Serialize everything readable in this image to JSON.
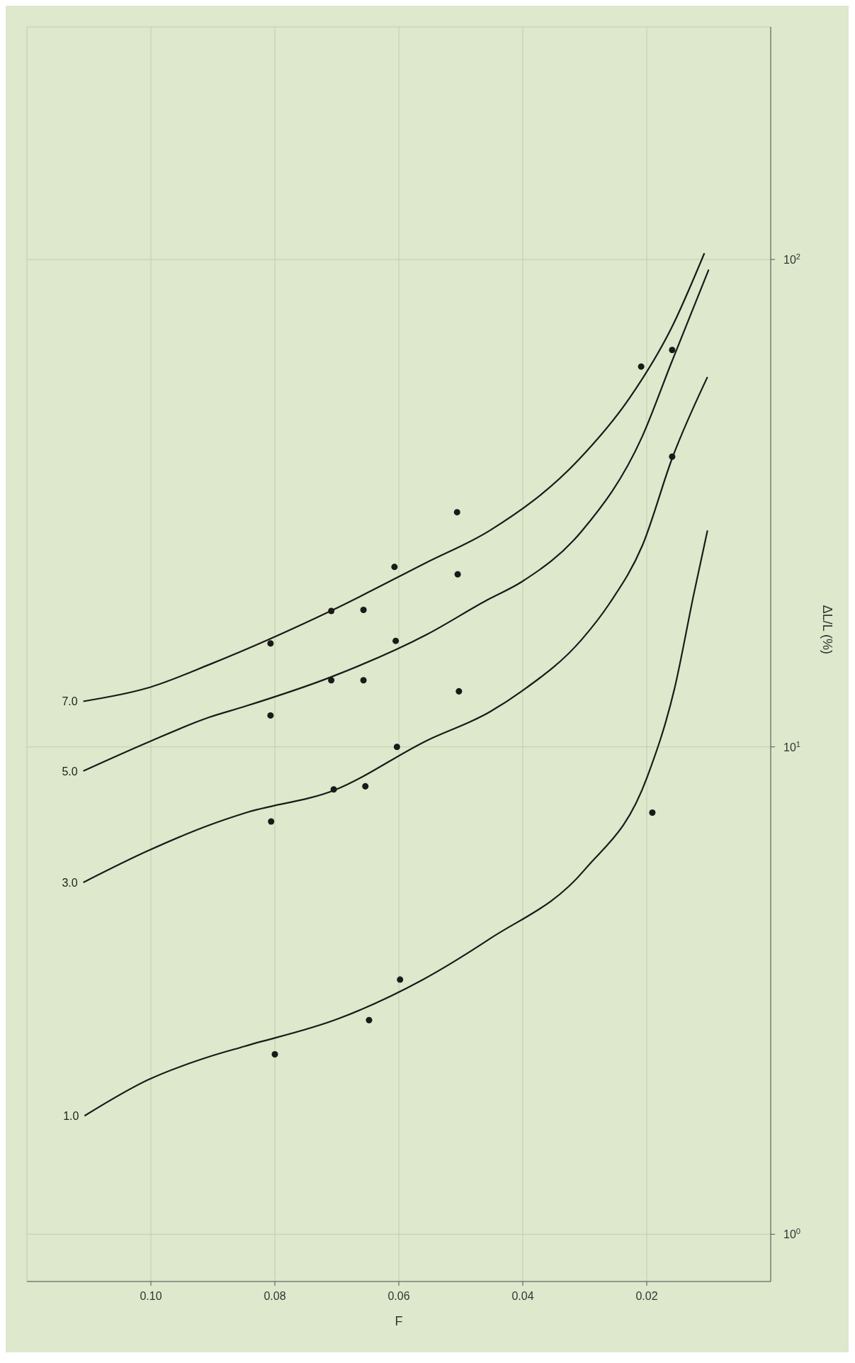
{
  "chart_data": {
    "type": "line",
    "xlabel": "F",
    "ylabel": "ΔL/L (%)",
    "log": "y",
    "grid": true,
    "line_style": "solid",
    "marker": "none",
    "xlim": [
      0.12,
      0
    ],
    "xticks": [
      {
        "value": 0.1,
        "label": "0.10"
      },
      {
        "value": 0.08,
        "label": "0.08"
      },
      {
        "value": 0.06,
        "label": "0.06"
      },
      {
        "value": 0.04,
        "label": "0.04"
      },
      {
        "value": 0.02,
        "label": "0.02"
      }
    ],
    "ylim": [
      0.8,
      300
    ],
    "yticks": [
      {
        "value": 1,
        "label": "10$^{0}$"
      },
      {
        "value": 10,
        "label": "10$^{1}$"
      },
      {
        "value": 100,
        "label": "10$^{2}$"
      }
    ],
    "series": [
      {
        "name": "1.0",
        "color": "#1a1a1a",
        "x": [
          0.1107,
          0.1006,
          0.0903,
          0.0849,
          0.0697,
          0.0563,
          0.0453,
          0.03,
          0.0199,
          0.0155,
          0.0124,
          0.0102
        ],
        "values": [
          1.75,
          2.07,
          2.32,
          2.43,
          2.77,
          3.32,
          4.04,
          5.6,
          8.69,
          13.2,
          20.6,
          27.8
        ]
      },
      {
        "name": "3.0",
        "color": "#1a1a1a",
        "x": [
          0.1109,
          0.1006,
          0.0903,
          0.0849,
          0.0703,
          0.0555,
          0.0453,
          0.0402,
          0.0305,
          0.026,
          0.0207,
          0.0158,
          0.0102
        ],
        "values": [
          5.27,
          6.11,
          6.93,
          7.31,
          8.16,
          10.3,
          11.8,
          13.0,
          16.6,
          19.7,
          25.9,
          39.4,
          57.4
        ]
      },
      {
        "name": "5.0",
        "color": "#1a1a1a",
        "x": [
          0.1109,
          0.1006,
          0.0906,
          0.0849,
          0.071,
          0.0555,
          0.0458,
          0.0402,
          0.0305,
          0.0207,
          0.016,
          0.01
        ],
        "values": [
          8.92,
          10.2,
          11.5,
          12.1,
          13.9,
          17.0,
          20.0,
          21.8,
          27.7,
          43.4,
          61.5,
          95.3
        ]
      },
      {
        "name": "7.0",
        "color": "#1a1a1a",
        "x": [
          0.1109,
          0.1006,
          0.0903,
          0.071,
          0.0555,
          0.0453,
          0.031,
          0.0228,
          0.016,
          0.0107
        ],
        "values": [
          12.4,
          13.2,
          14.8,
          19.0,
          23.9,
          27.8,
          38.8,
          51.9,
          72.4,
          103
        ]
      },
      {
        "type": "scatter",
        "marker": "circle",
        "color": "#1a1a1a",
        "x": [
          0.0506,
          0.0607,
          0.0505,
          0.0657,
          0.0807,
          0.0605,
          0.0657,
          0.0807,
          0.0503,
          0.0603,
          0.0654,
          0.0806,
          0.0191,
          0.0159,
          0.0598,
          0.0648,
          0.08,
          0.0209,
          0.0159,
          0.0709,
          0.0709,
          0.0705
        ],
        "values": [
          30.3,
          23.4,
          22.6,
          19.1,
          16.3,
          16.5,
          13.7,
          11.6,
          13.0,
          10.0,
          8.3,
          7.03,
          7.33,
          39.4,
          3.33,
          2.75,
          2.34,
          60.3,
          65.2,
          19.0,
          13.7,
          8.18
        ]
      }
    ]
  }
}
